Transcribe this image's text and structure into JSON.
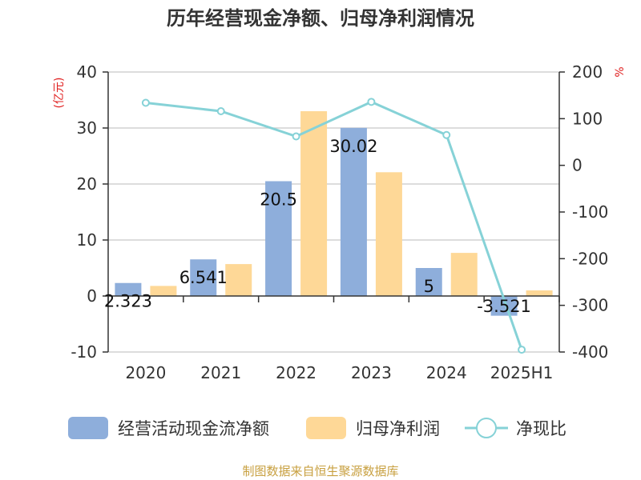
{
  "chart_data": {
    "type": "bar",
    "title": "历年经营现金净额、归母净利润情况",
    "categories": [
      "2020",
      "2021",
      "2022",
      "2023",
      "2024",
      "2025H1"
    ],
    "left_axis": {
      "unit": "(亿元)",
      "ticks": [
        "40",
        "30",
        "20",
        "10",
        "0",
        "-10"
      ],
      "range": [
        -10,
        40
      ]
    },
    "right_axis": {
      "unit": "%",
      "ticks": [
        "200",
        "100",
        "0",
        "-100",
        "-200",
        "-300",
        "-400"
      ],
      "range": [
        -400,
        200
      ]
    },
    "series": [
      {
        "name": "经营活动现金流净额",
        "type": "bar",
        "axis": "left",
        "color": "#8eaedb",
        "values": [
          2.323,
          6.541,
          20.5,
          30.02,
          5,
          -3.521
        ],
        "labels": [
          "2.323",
          "6.541",
          "20.5",
          "30.02",
          "5",
          "-3.521"
        ]
      },
      {
        "name": "归母净利润",
        "type": "bar",
        "axis": "left",
        "color": "#fed897",
        "values": [
          1.8,
          5.7,
          33.0,
          22.1,
          7.7,
          1.0
        ]
      },
      {
        "name": "净现比",
        "type": "line",
        "axis": "right",
        "color": "#86d2d7",
        "values": [
          134,
          116,
          62,
          136,
          65,
          -395
        ]
      }
    ],
    "grid": true,
    "legend_position": "bottom",
    "source": "制图数据来自恒生聚源数据库",
    "colors": {
      "title": "#333333",
      "axis_text": "#333333",
      "unit": "#e02020",
      "source": "#c8a040",
      "grid": "#d0d0d0"
    }
  }
}
